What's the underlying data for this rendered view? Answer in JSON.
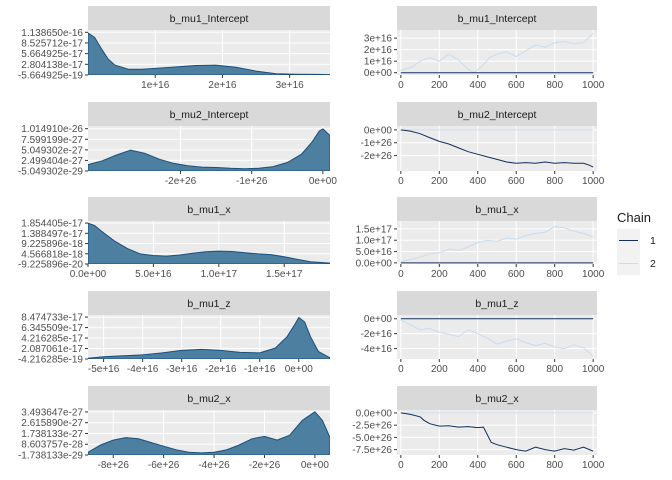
{
  "colors": {
    "panel_bg": "#ebebeb",
    "strip_bg": "#d9d9d9",
    "gridline": "#ffffff",
    "density_fill": "#4d7fa1",
    "density_line": "#1a4f7a",
    "chain1": "#132f5c",
    "chain2": "#c8dcec",
    "text_strip": "#1a1a1a",
    "text_axis": "#4d4d4d"
  },
  "chart_data": {
    "type": "line",
    "description_free": true,
    "legend": {
      "title": "Chain",
      "entries": [
        "1",
        "2"
      ],
      "placement": "right"
    },
    "panels": [
      {
        "kind": "density",
        "title": "b_mu1_Intercept",
        "xlim": [
          0,
          3.6e+16
        ],
        "ylim": [
          -5.664925e-19,
          1.2e-16
        ],
        "x_ticks": [
          1e+16,
          2e+16,
          3e+16
        ],
        "x_tick_labels": [
          "1e+16",
          "2e+16",
          "3e+16"
        ],
        "y_ticks": [
          -5.664925e-19,
          2.804138e-17,
          5.664925e-17,
          8.525712e-17,
          1.13865e-16
        ],
        "y_tick_labels": [
          "-5.664925e-19",
          "2.804138e-17",
          "5.664925e-17",
          "8.525712e-17",
          "1.138650e-16"
        ],
        "x": [
          0,
          1000000000000000.0,
          2000000000000000.0,
          3000000000000000.0,
          4000000000000000.0,
          6000000000000000.0,
          8000000000000000.0,
          1e+16,
          1.3e+16,
          1.6e+16,
          1.9e+16,
          2.2e+16,
          2.5e+16,
          2.8e+16,
          3.1e+16,
          3.4e+16,
          3.6e+16
        ],
        "y": [
          1.12e-16,
          1e-16,
          7e-17,
          4.2e-17,
          2.6e-17,
          1.5e-17,
          1.5e-17,
          1.7e-17,
          2.1e-17,
          2.5e-17,
          2.6e-17,
          2e-17,
          1e-17,
          3e-18,
          1.5e-18,
          1e-18,
          5e-19
        ]
      },
      {
        "kind": "trace",
        "title": "b_mu1_Intercept",
        "xlim": [
          -20,
          1020
        ],
        "ylim": [
          -2000000000000000.0,
          3.7e+16
        ],
        "x_ticks": [
          0,
          200,
          400,
          600,
          800,
          1000
        ],
        "x_tick_labels": [
          "0",
          "200",
          "400",
          "600",
          "800",
          "1000"
        ],
        "y_ticks": [
          0,
          1e+16,
          2e+16,
          3e+16
        ],
        "y_tick_labels": [
          "0e+00",
          "1e+16",
          "2e+16",
          "3e+16"
        ],
        "series": [
          {
            "name": "1",
            "x": [
              0,
              1000
            ],
            "y": [
              0,
              0
            ]
          },
          {
            "name": "2",
            "x": [
              0,
              60,
              100,
              150,
              200,
              250,
              300,
              350,
              380,
              420,
              460,
              500,
              550,
              600,
              650,
              700,
              750,
              800,
              850,
              900,
              950,
              1000
            ],
            "y": [
              2000000000000000.0,
              5000000000000000.0,
              1e+16,
              1.3e+16,
              1e+16,
              1.6e+16,
              1.1e+16,
              3000000000000000.0,
              0,
              5000000000000000.0,
              1.3e+16,
              1.6e+16,
              1.8e+16,
              1.4e+16,
              1.9e+16,
              2.4e+16,
              2.2e+16,
              2.6e+16,
              2.7e+16,
              2.5e+16,
              2.6e+16,
              3.4e+16
            ]
          }
        ]
      },
      {
        "kind": "density",
        "title": "b_mu2_Intercept",
        "xlim": [
          -3.3e+26,
          1e+25
        ],
        "ylim": [
          -5.049302e-29,
          1.08e-26
        ],
        "x_ticks": [
          -2e+26,
          -1e+26,
          0
        ],
        "x_tick_labels": [
          "-2e+26",
          "-1e+26",
          "0e+00"
        ],
        "y_ticks": [
          -5.049302e-29,
          2.499404e-27,
          5.049302e-27,
          7.599199e-27,
          1.01491e-26
        ],
        "y_tick_labels": [
          "-5.049302e-29",
          "2.499404e-27",
          "5.049302e-27",
          "7.599199e-27",
          "1.014910e-26"
        ],
        "x": [
          -3.3e+26,
          -3.1e+26,
          -2.9e+26,
          -2.7e+26,
          -2.5e+26,
          -2.3e+26,
          -2.1e+26,
          -1.9e+26,
          -1.7e+26,
          -1.5e+26,
          -1.3e+26,
          -1.1e+26,
          -9e+25,
          -7e+25,
          -5e+25,
          -3e+25,
          -1.5e+25,
          -5e+24,
          0,
          1e+25
        ],
        "y": [
          1.5e-27,
          2.4e-27,
          3.8e-27,
          5e-27,
          4.2e-27,
          2.8e-27,
          1.8e-27,
          1.2e-27,
          9e-28,
          8e-28,
          6e-28,
          5e-28,
          6e-28,
          1e-27,
          2e-27,
          4e-27,
          7e-27,
          9.6e-27,
          1.01e-26,
          8.5e-27
        ]
      },
      {
        "kind": "trace",
        "title": "b_mu2_Intercept",
        "xlim": [
          -20,
          1020
        ],
        "ylim": [
          -3.2e+26,
          3e+25
        ],
        "x_ticks": [
          0,
          200,
          400,
          600,
          800,
          1000
        ],
        "x_tick_labels": [
          "0",
          "200",
          "400",
          "600",
          "800",
          "1000"
        ],
        "y_ticks": [
          -2e+26,
          -1e+26,
          0
        ],
        "y_tick_labels": [
          "-2e+26",
          "-1e+26",
          "0e+00"
        ],
        "series": [
          {
            "name": "1",
            "x": [
              0,
              50,
              100,
              150,
              200,
              250,
              300,
              350,
              400,
              450,
              500,
              550,
              600,
              650,
              700,
              750,
              800,
              850,
              900,
              950,
              980,
              1000
            ],
            "y": [
              0,
              -1e+25,
              -3e+25,
              -6e+25,
              -9e+25,
              -1.1e+26,
              -1.4e+26,
              -1.7e+26,
              -1.9e+26,
              -2.1e+26,
              -2.3e+26,
              -2.5e+26,
              -2.6e+26,
              -2.55e+26,
              -2.6e+26,
              -2.5e+26,
              -2.6e+26,
              -2.55e+26,
              -2.6e+26,
              -2.6e+26,
              -2.75e+26,
              -2.9e+26
            ]
          },
          {
            "name": "2",
            "x": [
              0,
              1000
            ],
            "y": [
              0,
              0
            ]
          }
        ]
      },
      {
        "kind": "density",
        "title": "b_mu1_x",
        "xlim": [
          0,
          1.85e+17
        ],
        "ylim": [
          -9.225896e-20,
          1.95e-17
        ],
        "x_ticks": [
          0,
          5e+16,
          1e+17,
          1.5e+17
        ],
        "x_tick_labels": [
          "0.0e+00",
          "5.0e+16",
          "1.0e+17",
          "1.5e+17"
        ],
        "y_ticks": [
          -9.225896e-20,
          4.566818e-18,
          9.225896e-18,
          1.388497e-17,
          1.854405e-17
        ],
        "y_tick_labels": [
          "-9.225896e-20",
          "4.566818e-18",
          "9.225896e-18",
          "1.388497e-17",
          "1.854405e-17"
        ],
        "x": [
          0,
          5000000000000000.0,
          1e+16,
          2e+16,
          3e+16,
          4e+16,
          5e+16,
          6e+16,
          7e+16,
          8e+16,
          9e+16,
          1e+17,
          1.1e+17,
          1.2e+17,
          1.3e+17,
          1.4e+17,
          1.5e+17,
          1.6e+17,
          1.7e+17,
          1.85e+17
        ],
        "y": [
          1.85e-17,
          1.75e-17,
          1.5e-17,
          1.05e-17,
          7e-18,
          4.5e-18,
          3.8e-18,
          3.5e-18,
          4e-18,
          4.8e-18,
          5.5e-18,
          5.8e-18,
          5.6e-18,
          5e-18,
          4.5e-18,
          4.2e-18,
          3.2e-18,
          2e-18,
          9e-19,
          3e-19
        ]
      },
      {
        "kind": "trace",
        "title": "b_mu1_x",
        "xlim": [
          -20,
          1020
        ],
        "ylim": [
          -5000000000000000.0,
          1.85e+17
        ],
        "x_ticks": [
          0,
          200,
          400,
          600,
          800,
          1000
        ],
        "x_tick_labels": [
          "0",
          "200",
          "400",
          "600",
          "800",
          "1000"
        ],
        "y_ticks": [
          0,
          5e+16,
          1e+17,
          1.5e+17
        ],
        "y_tick_labels": [
          "0.0e+00",
          "5.0e+16",
          "1.0e+17",
          "1.5e+17"
        ],
        "series": [
          {
            "name": "1",
            "x": [
              0,
              1000
            ],
            "y": [
              0,
              0
            ]
          },
          {
            "name": "2",
            "x": [
              0,
              50,
              100,
              150,
              200,
              250,
              300,
              350,
              400,
              450,
              500,
              550,
              600,
              650,
              700,
              750,
              800,
              850,
              900,
              950,
              1000
            ],
            "y": [
              5000000000000000.0,
              1.5e+16,
              2.5e+16,
              4e+16,
              4.5e+16,
              6e+16,
              5.5e+16,
              7e+16,
              9e+16,
              1e+17,
              9.5e+16,
              1.1e+17,
              1.05e+17,
              1.2e+17,
              1.3e+17,
              1.35e+17,
              1.6e+17,
              1.55e+17,
              1.4e+17,
              1.3e+17,
              1.15e+17
            ]
          }
        ]
      },
      {
        "kind": "density",
        "title": "b_mu1_z",
        "xlim": [
          -5.4e+16,
          8000000000000000.0
        ],
        "ylim": [
          -4.216285e-19,
          8.9e-17
        ],
        "x_ticks": [
          -5e+16,
          -4e+16,
          -3e+16,
          -2e+16,
          -1e+16,
          0
        ],
        "x_tick_labels": [
          "-5e+16",
          "-4e+16",
          "-3e+16",
          "-2e+16",
          "-1e+16",
          "0e+00"
        ],
        "y_ticks": [
          -4.216285e-19,
          2.087061e-17,
          4.216285e-17,
          6.34551e-17,
          8.474733e-17
        ],
        "y_tick_labels": [
          "-4.216285e-19",
          "2.087061e-17",
          "4.216285e-17",
          "6.345509e-17",
          "8.474733e-17"
        ],
        "x": [
          -5.4e+16,
          -5e+16,
          -4.5e+16,
          -4e+16,
          -3.5e+16,
          -3e+16,
          -2.5e+16,
          -2e+16,
          -1.5e+16,
          -1e+16,
          -6000000000000000.0,
          -3000000000000000.0,
          -1000000000000000.0,
          0,
          1500000000000000.0,
          3000000000000000.0,
          5000000000000000.0,
          8000000000000000.0
        ],
        "y": [
          1e-18,
          4e-18,
          6e-18,
          8e-18,
          1.2e-17,
          1.7e-17,
          1.9e-17,
          1.7e-17,
          1.3e-17,
          1.2e-17,
          2.2e-17,
          4.5e-17,
          7e-17,
          8.4e-17,
          7.5e-17,
          4.5e-17,
          1.5e-17,
          2e-18
        ]
      },
      {
        "kind": "trace",
        "title": "b_mu1_z",
        "xlim": [
          -20,
          1020
        ],
        "ylim": [
          -5.4e+16,
          5000000000000000.0
        ],
        "x_ticks": [
          0,
          200,
          400,
          600,
          800,
          1000
        ],
        "x_tick_labels": [
          "0",
          "200",
          "400",
          "600",
          "800",
          "1000"
        ],
        "y_ticks": [
          -4e+16,
          -2e+16,
          0
        ],
        "y_tick_labels": [
          "-4e+16",
          "-2e+16",
          "0e+00"
        ],
        "series": [
          {
            "name": "1",
            "x": [
              0,
              1000
            ],
            "y": [
              0,
              0
            ]
          },
          {
            "name": "2",
            "x": [
              0,
              50,
              100,
              150,
              200,
              250,
              300,
              350,
              400,
              450,
              500,
              550,
              600,
              650,
              700,
              750,
              800,
              850,
              900,
              950,
              1000
            ],
            "y": [
              -2000000000000000.0,
              -8000000000000000.0,
              -1.5e+16,
              -1.3e+16,
              -1.8e+16,
              -2.1e+16,
              -2.4e+16,
              -1.5e+16,
              -2e+16,
              -2.6e+16,
              -3.4e+16,
              -3e+16,
              -2.7e+16,
              -3.2e+16,
              -3.6e+16,
              -3.3e+16,
              -3.8e+16,
              -4e+16,
              -3.5e+16,
              -3.9e+16,
              -5e+16
            ]
          }
        ]
      },
      {
        "kind": "density",
        "title": "b_mu2_x",
        "xlim": [
          -9e+26,
          6e+25
        ],
        "ylim": [
          -1.738133e-29,
          3.65e-27
        ],
        "x_ticks": [
          -8e+26,
          -6e+26,
          -4e+26,
          -2e+26,
          0
        ],
        "x_tick_labels": [
          "-8e+26",
          "-6e+26",
          "-4e+26",
          "-2e+26",
          "0e+00"
        ],
        "y_ticks": [
          -1.738133e-29,
          8.603757e-28,
          1.738133e-27,
          2.61589e-27,
          3.493647e-27
        ],
        "y_tick_labels": [
          "-1.738133e-29",
          "8.603757e-28",
          "1.738133e-27",
          "2.615890e-27",
          "3.493647e-27"
        ],
        "x": [
          -9e+26,
          -8.5e+26,
          -8e+26,
          -7.5e+26,
          -7e+26,
          -6.5e+26,
          -6e+26,
          -5.5e+26,
          -5e+26,
          -4.5e+26,
          -4e+26,
          -3.5e+26,
          -3e+26,
          -2.5e+26,
          -2e+26,
          -1.5e+26,
          -1e+26,
          -5e+25,
          0,
          3e+25,
          6e+25
        ],
        "y": [
          2e-28,
          8e-28,
          1.2e-27,
          1.4e-27,
          1.3e-27,
          1e-27,
          7e-28,
          4e-28,
          2e-28,
          1.5e-28,
          2e-28,
          4e-28,
          8e-28,
          1.3e-27,
          1.5e-27,
          1.2e-27,
          1.6e-27,
          2.8e-27,
          3.5e-27,
          2.8e-27,
          1.4e-27
        ]
      },
      {
        "kind": "trace",
        "title": "b_mu2_x",
        "xlim": [
          -20,
          1020
        ],
        "ylim": [
          -8.6e+26,
          6e+25
        ],
        "x_ticks": [
          0,
          200,
          400,
          600,
          800,
          1000
        ],
        "x_tick_labels": [
          "0",
          "200",
          "400",
          "600",
          "800",
          "1000"
        ],
        "y_ticks": [
          -7.5e+26,
          -5e+26,
          -2.5e+26,
          0
        ],
        "y_tick_labels": [
          "-7.5e+26",
          "-5.0e+26",
          "-2.5e+26",
          "0.0e+00"
        ],
        "series": [
          {
            "name": "1",
            "x": [
              0,
              50,
              100,
              120,
              150,
              200,
              250,
              300,
              350,
              400,
              430,
              450,
              470,
              500,
              550,
              600,
              650,
              700,
              750,
              800,
              850,
              900,
              950,
              1000
            ],
            "y": [
              0,
              -3e+25,
              -8e+25,
              -1.5e+26,
              -2.2e+26,
              -2.7e+26,
              -2.6e+26,
              -2.9e+26,
              -2.8e+26,
              -3e+26,
              -2.9e+26,
              -4.5e+26,
              -6e+26,
              -6.5e+26,
              -7e+26,
              -7.5e+26,
              -7.8e+26,
              -7e+26,
              -7.5e+26,
              -7.8e+26,
              -7.3e+26,
              -7.6e+26,
              -7e+26,
              -7.8e+26
            ]
          },
          {
            "name": "2",
            "x": [
              0,
              1000
            ],
            "y": [
              0,
              0
            ]
          }
        ]
      }
    ]
  }
}
